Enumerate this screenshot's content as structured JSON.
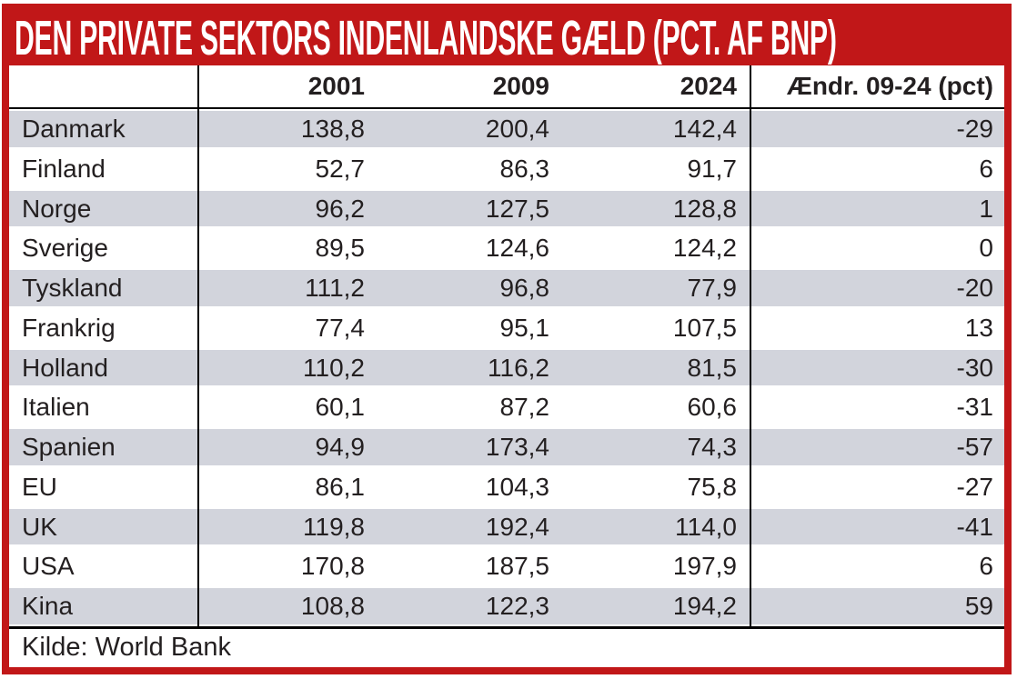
{
  "title": "DEN PRIVATE SEKTORS INDENLANDSKE GÆLD (PCT. AF BNP)",
  "columns": [
    "",
    "2001",
    "2009",
    "2024",
    "Ændr. 09-24 (pct)"
  ],
  "rows": [
    [
      "Danmark",
      "138,8",
      "200,4",
      "142,4",
      "-29"
    ],
    [
      "Finland",
      "52,7",
      "86,3",
      "91,7",
      "6"
    ],
    [
      "Norge",
      "96,2",
      "127,5",
      "128,8",
      "1"
    ],
    [
      "Sverige",
      "89,5",
      "124,6",
      "124,2",
      "0"
    ],
    [
      "Tyskland",
      "111,2",
      "96,8",
      "77,9",
      "-20"
    ],
    [
      "Frankrig",
      "77,4",
      "95,1",
      "107,5",
      "13"
    ],
    [
      "Holland",
      "110,2",
      "116,2",
      "81,5",
      "-30"
    ],
    [
      "Italien",
      "60,1",
      "87,2",
      "60,6",
      "-31"
    ],
    [
      "Spanien",
      "94,9",
      "173,4",
      "74,3",
      "-57"
    ],
    [
      "EU",
      "86,1",
      "104,3",
      "75,8",
      "-27"
    ],
    [
      "UK",
      "119,8",
      "192,4",
      "114,0",
      "-41"
    ],
    [
      "USA",
      "170,8",
      "187,5",
      "197,9",
      "6"
    ],
    [
      "Kina",
      "108,8",
      "122,3",
      "194,2",
      "59"
    ]
  ],
  "source": "Kilde: World Bank",
  "colors": {
    "accent_red": "#c11718",
    "row_stripe": "#d2d4dc",
    "grid_black": "#000000",
    "title_text": "#ffffff",
    "body_text": "#231f20"
  },
  "chart_data": {
    "type": "table",
    "title": "DEN PRIVATE SEKTORS INDENLANDSKE GÆLD (PCT. AF BNP)",
    "categories": [
      "Danmark",
      "Finland",
      "Norge",
      "Sverige",
      "Tyskland",
      "Frankrig",
      "Holland",
      "Italien",
      "Spanien",
      "EU",
      "UK",
      "USA",
      "Kina"
    ],
    "series": [
      {
        "name": "2001",
        "values": [
          138.8,
          52.7,
          96.2,
          89.5,
          111.2,
          77.4,
          110.2,
          60.1,
          94.9,
          86.1,
          119.8,
          170.8,
          108.8
        ]
      },
      {
        "name": "2009",
        "values": [
          200.4,
          86.3,
          127.5,
          124.6,
          96.8,
          95.1,
          116.2,
          87.2,
          173.4,
          104.3,
          192.4,
          187.5,
          122.3
        ]
      },
      {
        "name": "2024",
        "values": [
          142.4,
          91.7,
          128.8,
          124.2,
          77.9,
          107.5,
          81.5,
          60.6,
          74.3,
          75.8,
          114.0,
          197.9,
          194.2
        ]
      },
      {
        "name": "Ændr. 09-24 (pct)",
        "values": [
          -29,
          6,
          1,
          0,
          -20,
          13,
          -30,
          -31,
          -57,
          -27,
          -41,
          6,
          59
        ]
      }
    ],
    "source": "Kilde: World Bank",
    "layout": "striped rows, black column separators after first and before last column, red outer border"
  }
}
